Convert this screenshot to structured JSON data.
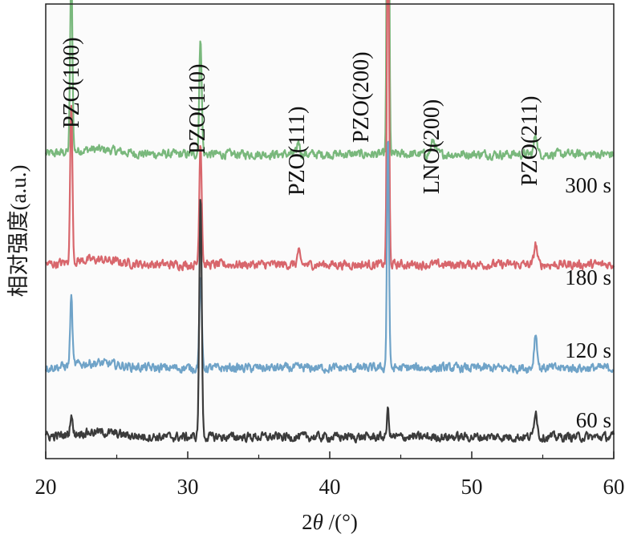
{
  "chart_data": {
    "type": "line",
    "title": "",
    "xlabel_prefix": "2",
    "xlabel_symbol": "θ",
    "xlabel_suffix": " /(°)",
    "ylabel": "相对强度(a.u.)",
    "xlim": [
      20,
      60
    ],
    "xticks": [
      20,
      30,
      40,
      50,
      60
    ],
    "yticks_shown": false,
    "grid": false,
    "annotations": [
      {
        "text": "PZO(100)",
        "x": 21.8
      },
      {
        "text": "PZO(110)",
        "x": 30.9
      },
      {
        "text": "PZO(111)",
        "x": 37.8
      },
      {
        "text": "PZO(200)",
        "x": 44.1
      },
      {
        "text": "LNO(200)",
        "x": 47.3
      },
      {
        "text": "PZO(211)",
        "x": 54.5
      }
    ],
    "peak_positions": [
      21.8,
      30.9,
      37.8,
      44.1,
      47.3,
      54.5
    ],
    "series": [
      {
        "name": "300 s",
        "color": "#79b87c",
        "baseline": 4.1,
        "peak_heights": [
          2.7,
          1.7,
          0.2,
          7.7,
          0.2,
          0.3
        ]
      },
      {
        "name": "180 s",
        "color": "#d8666c",
        "baseline": 2.5,
        "peak_heights": [
          2.3,
          1.8,
          0.2,
          5.6,
          0.0,
          0.3
        ]
      },
      {
        "name": "120 s",
        "color": "#6fa3c8",
        "baseline": 1.0,
        "peak_heights": [
          1.0,
          1.3,
          0.0,
          3.4,
          0.0,
          0.5
        ]
      },
      {
        "name": "60 s",
        "color": "#3b3b3b",
        "baseline": 0.0,
        "peak_heights": [
          0.3,
          3.5,
          0.0,
          0.4,
          0.0,
          0.4
        ]
      }
    ]
  }
}
